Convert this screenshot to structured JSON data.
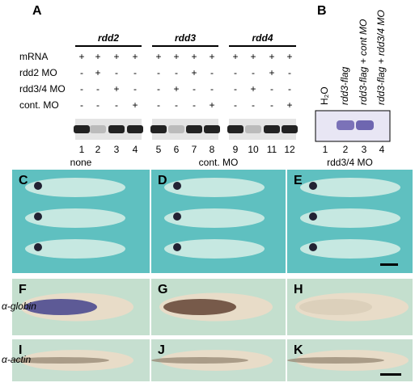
{
  "panel_a": {
    "label": "A",
    "groups": [
      "rdd2",
      "rdd3",
      "rdd4"
    ],
    "rows": [
      {
        "name": "mRNA",
        "signs": [
          "+",
          "+",
          "+",
          "+",
          "+",
          "+",
          "+",
          "+",
          "+",
          "+",
          "+",
          "+"
        ]
      },
      {
        "name": "rdd2 MO",
        "signs": [
          "-",
          "+",
          "-",
          "-",
          "-",
          "-",
          "+",
          "-",
          "-",
          "-",
          "+",
          "-"
        ]
      },
      {
        "name": "rdd3/4 MO",
        "signs": [
          "-",
          "-",
          "+",
          "-",
          "-",
          "+",
          "-",
          "-",
          "-",
          "+",
          "-",
          "-"
        ]
      },
      {
        "name": "cont. MO",
        "signs": [
          "-",
          "-",
          "-",
          "+",
          "-",
          "-",
          "-",
          "+",
          "-",
          "-",
          "-",
          "+"
        ]
      }
    ],
    "lanes": [
      "1",
      "2",
      "3",
      "4",
      "5",
      "6",
      "7",
      "8",
      "9",
      "10",
      "11",
      "12"
    ]
  },
  "panel_b": {
    "label": "B",
    "samples": [
      "H₂O",
      "rdd3-flag",
      "rdd3-flag + cont MO",
      "rdd3-flag + rdd3/4 MO"
    ],
    "lanes": [
      "1",
      "2",
      "3",
      "4"
    ]
  },
  "embryos": {
    "columns": [
      "none",
      "cont. MO",
      "rdd3/4 MO"
    ],
    "panel_letters": [
      "C",
      "D",
      "E",
      "F",
      "G",
      "H",
      "I",
      "J",
      "K"
    ],
    "row_labels": [
      "α-globin",
      "α-actin"
    ]
  }
}
